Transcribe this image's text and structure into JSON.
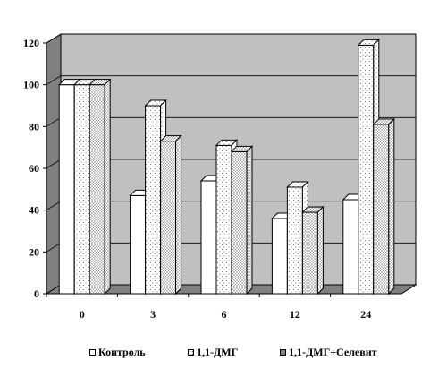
{
  "chart_data": {
    "type": "bar",
    "categories": [
      "0",
      "3",
      "6",
      "12",
      "24"
    ],
    "series": [
      {
        "name": "Контроль",
        "values": [
          100,
          47,
          54,
          36,
          45
        ],
        "fill": "#ffffff"
      },
      {
        "name": "1,1-ДМГ",
        "values": [
          100,
          90,
          71,
          51,
          119
        ],
        "fill": "pattern-light"
      },
      {
        "name": "1,1-ДМГ+Селевит",
        "values": [
          100,
          73,
          68,
          39,
          81
        ],
        "fill": "pattern-dense"
      }
    ],
    "y_ticks": [
      "0",
      "20",
      "40",
      "60",
      "80",
      "100",
      "120"
    ],
    "ylim": [
      0,
      120
    ],
    "grid": true,
    "legend_position": "bottom",
    "style": "3d",
    "colors": {
      "wall": "#c0c0c0",
      "floor": "#808080",
      "grid": "#000000",
      "bar_stroke": "#000000"
    }
  }
}
